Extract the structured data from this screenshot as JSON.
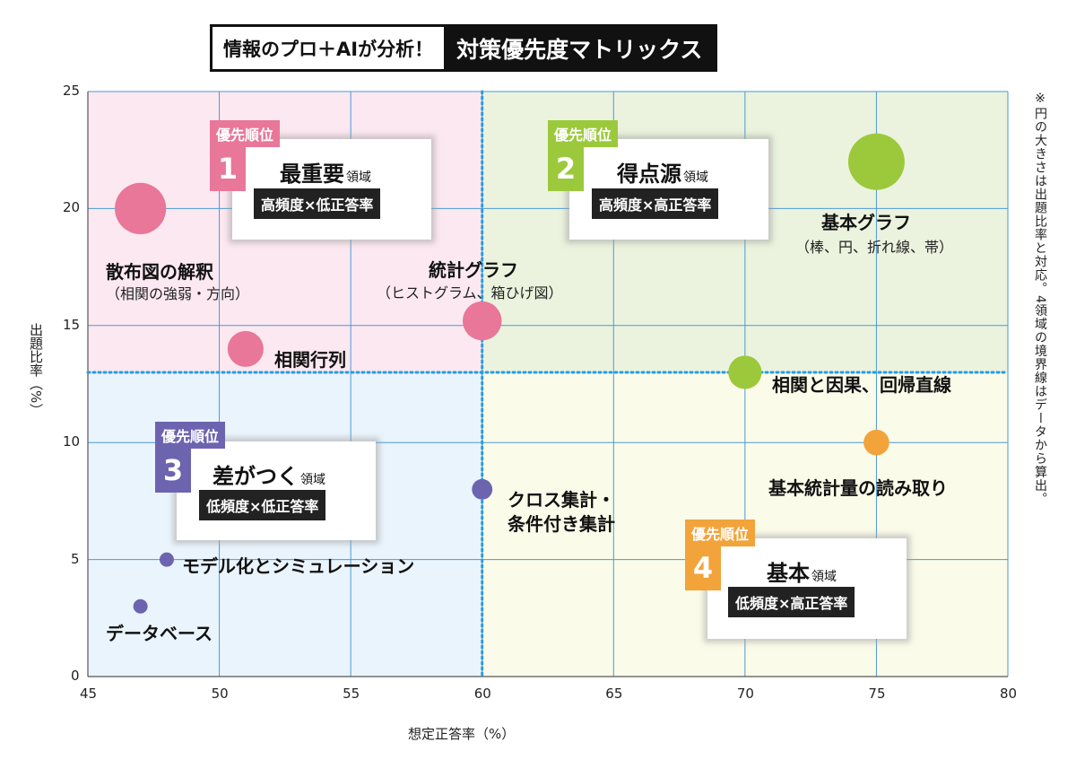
{
  "header": {
    "title_prefix": "情報のプロ＋AIが分析！",
    "title_main": "対策優先度マトリックス"
  },
  "note": "※円の大きさは出題比率と対応。4領域の境界線はデータから算出。",
  "colors": {
    "pink": "#e8779a",
    "green": "#9bc93b",
    "orange": "#f2a33a",
    "purple": "#6d64b0",
    "bg_pink": "#fce8f0",
    "bg_green": "#ebf3de",
    "bg_yellow": "#fbfbe9",
    "bg_blue": "#eaf4fc",
    "grid": "#4a9ad4",
    "divider": "#2b9be0"
  },
  "quadrants": [
    {
      "id": "q1",
      "badge": "優先順位",
      "number": "1",
      "name": "最重要",
      "suffix": "領域",
      "desc": "高頻度×低正答率",
      "color": "#e8779a"
    },
    {
      "id": "q2",
      "badge": "優先順位",
      "number": "2",
      "name": "得点源",
      "suffix": "領域",
      "desc": "高頻度×高正答率",
      "color": "#9bc93b"
    },
    {
      "id": "q3",
      "badge": "優先順位",
      "number": "3",
      "name": "差がつく",
      "suffix": "領域",
      "desc": "低頻度×低正答率",
      "color": "#6d64b0"
    },
    {
      "id": "q4",
      "badge": "優先順位",
      "number": "4",
      "name": "基本",
      "suffix": "領域",
      "desc": "低頻度×高正答率",
      "color": "#f2a33a"
    }
  ],
  "chart_data": {
    "type": "scatter",
    "xlabel": "想定正答率（%）",
    "ylabel": "出題比率（%）",
    "xlim": [
      45,
      80
    ],
    "ylim": [
      0,
      25
    ],
    "xticks": [
      45,
      50,
      55,
      60,
      65,
      70,
      75,
      80
    ],
    "yticks": [
      0,
      5,
      10,
      15,
      20,
      25
    ],
    "grid": true,
    "dividers": {
      "x": 60,
      "y": 13
    },
    "points": [
      {
        "label": "散布図の解釈",
        "sublabel": "（相関の強弱・方向）",
        "x": 47,
        "y": 20,
        "quadrant": "q1"
      },
      {
        "label": "相関行列",
        "sublabel": "",
        "x": 51,
        "y": 14,
        "quadrant": "q1"
      },
      {
        "label": "統計グラフ",
        "sublabel": "（ヒストグラム、箱ひげ図）",
        "x": 60,
        "y": 15.2,
        "quadrant": "q1"
      },
      {
        "label": "基本グラフ",
        "sublabel": "（棒、円、折れ線、帯）",
        "x": 75,
        "y": 22,
        "quadrant": "q2"
      },
      {
        "label": "相関と因果、回帰直線",
        "sublabel": "",
        "x": 70,
        "y": 13,
        "quadrant": "q2"
      },
      {
        "label": "基本統計量の読み取り",
        "sublabel": "",
        "x": 75,
        "y": 10,
        "quadrant": "q4"
      },
      {
        "label": "クロス集計・",
        "sublabel": "条件付き集計",
        "x": 60,
        "y": 8,
        "quadrant": "q3"
      },
      {
        "label": "モデル化とシミュレーション",
        "sublabel": "",
        "x": 48,
        "y": 5,
        "quadrant": "q3"
      },
      {
        "label": "データベース",
        "sublabel": "",
        "x": 47,
        "y": 3,
        "quadrant": "q3"
      }
    ]
  }
}
